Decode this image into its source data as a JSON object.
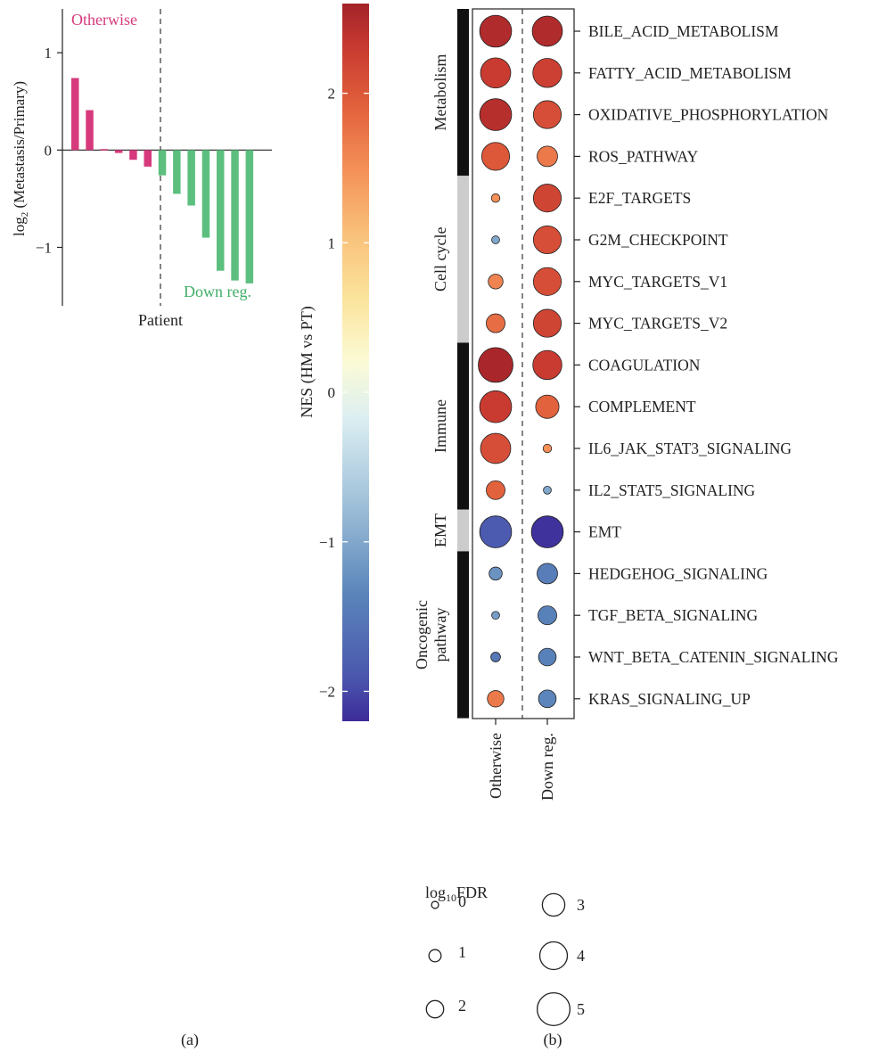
{
  "chart_data": [
    {
      "panel": "(a)",
      "type": "bar",
      "ylabel_prefix": "log",
      "ylabel_sub": "2",
      "ylabel_rest": " (Metastasis/Primary)",
      "xlabel": "Patient",
      "ylim": [
        -1.6,
        1.45
      ],
      "yticks": [
        1,
        0,
        -1
      ],
      "ytick_labels": [
        "1",
        "0",
        "−1"
      ],
      "values": [
        0.74,
        0.41,
        0.01,
        -0.03,
        -0.1,
        -0.17,
        -0.26,
        -0.45,
        -0.57,
        -0.9,
        -1.24,
        -1.34,
        -1.37
      ],
      "groups": [
        {
          "label": "Otherwise",
          "count": 6,
          "color": "#d63a7c"
        },
        {
          "label": "Down reg.",
          "count": 7,
          "color": "#5dbf7f"
        }
      ]
    },
    {
      "panel": "(b)",
      "type": "dot",
      "columns": [
        "Otherwise",
        "Down reg."
      ],
      "colorbar": {
        "label": "NES (HM vs PT)",
        "range": [
          -2.2,
          2.6
        ],
        "ticks": [
          2,
          1,
          0,
          -1,
          -2
        ],
        "tick_labels": [
          "2",
          "1",
          "0",
          "−1",
          "−2"
        ]
      },
      "categories": [
        {
          "name": "Metabolism",
          "lines": [
            "Metabolism"
          ],
          "count": 4,
          "color": "#111111"
        },
        {
          "name": "Cell cycle",
          "lines": [
            "Cell cycle"
          ],
          "count": 4,
          "color": "#cccccc"
        },
        {
          "name": "Immune",
          "lines": [
            "Immune"
          ],
          "count": 4,
          "color": "#111111"
        },
        {
          "name": "EMT",
          "lines": [
            "EMT"
          ],
          "count": 1,
          "color": "#cccccc"
        },
        {
          "name": "Oncogenic pathway",
          "lines": [
            "Oncogenic",
            "pathway"
          ],
          "count": 4,
          "color": "#111111"
        }
      ],
      "rows": [
        {
          "pathway": "BILE_ACID_METABOLISM",
          "nes": [
            2.5,
            2.5
          ],
          "log10fdr": [
            4.5,
            4.2
          ]
        },
        {
          "pathway": "FATTY_ACID_METABOLISM",
          "nes": [
            2.3,
            2.25
          ],
          "log10fdr": [
            4.2,
            4.0
          ]
        },
        {
          "pathway": "OXIDATIVE_PHOSPHORYLATION",
          "nes": [
            2.45,
            2.1
          ],
          "log10fdr": [
            4.5,
            3.8
          ]
        },
        {
          "pathway": "ROS_PATHWAY",
          "nes": [
            2.0,
            1.7
          ],
          "log10fdr": [
            3.8,
            2.5
          ]
        },
        {
          "pathway": "E2F_TARGETS",
          "nes": [
            1.5,
            2.2
          ],
          "log10fdr": [
            0.4,
            3.8
          ]
        },
        {
          "pathway": "G2M_CHECKPOINT",
          "nes": [
            -1.0,
            2.1
          ],
          "log10fdr": [
            0.3,
            3.8
          ]
        },
        {
          "pathway": "MYC_TARGETS_V1",
          "nes": [
            1.6,
            2.1
          ],
          "log10fdr": [
            1.5,
            3.8
          ]
        },
        {
          "pathway": "MYC_TARGETS_V2",
          "nes": [
            1.8,
            2.2
          ],
          "log10fdr": [
            2.2,
            3.8
          ]
        },
        {
          "pathway": "COAGULATION",
          "nes": [
            2.55,
            2.3
          ],
          "log10fdr": [
            5.0,
            4.0
          ]
        },
        {
          "pathway": "COMPLEMENT",
          "nes": [
            2.3,
            1.9
          ],
          "log10fdr": [
            4.5,
            3.0
          ]
        },
        {
          "pathway": "IL6_JAK_STAT3_SIGNALING",
          "nes": [
            2.1,
            1.5
          ],
          "log10fdr": [
            4.2,
            0.4
          ]
        },
        {
          "pathway": "IL2_STAT5_SIGNALING",
          "nes": [
            1.9,
            -1.0
          ],
          "log10fdr": [
            2.2,
            0.3
          ]
        },
        {
          "pathway": "EMT",
          "nes": [
            -1.85,
            -2.15
          ],
          "log10fdr": [
            4.5,
            4.5
          ]
        },
        {
          "pathway": "HEDGEHOG_SIGNALING",
          "nes": [
            -1.2,
            -1.45
          ],
          "log10fdr": [
            1.2,
            2.5
          ]
        },
        {
          "pathway": "TGF_BETA_SIGNALING",
          "nes": [
            -1.1,
            -1.4
          ],
          "log10fdr": [
            0.3,
            2.2
          ]
        },
        {
          "pathway": "WNT_BETA_CATENIN_SIGNALING",
          "nes": [
            -1.5,
            -1.4
          ],
          "log10fdr": [
            0.6,
            2.0
          ]
        },
        {
          "pathway": "KRAS_SIGNALING_UP",
          "nes": [
            1.7,
            -1.35
          ],
          "log10fdr": [
            1.8,
            2.0
          ]
        }
      ],
      "size_legend": {
        "title_prefix": "log",
        "title_sub": "10",
        "title_rest": "FDR",
        "values": [
          0,
          1,
          2,
          3,
          4,
          5
        ],
        "labels": [
          "0",
          "1",
          "2",
          "3",
          "4",
          "5"
        ]
      }
    }
  ],
  "panel_labels": [
    "(a)",
    "(b)"
  ]
}
